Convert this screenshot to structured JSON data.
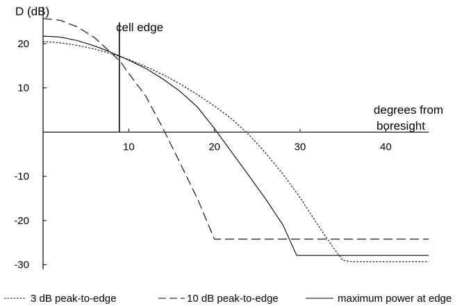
{
  "chart_data": {
    "type": "line",
    "ylabel": "D (dB)",
    "xlabel_line1": "degrees from",
    "xlabel_line2": "boresight",
    "xlim": [
      0,
      45
    ],
    "ylim": [
      -31,
      28
    ],
    "x_ticks": [
      10,
      20,
      30,
      40
    ],
    "y_ticks": [
      20,
      10,
      -10,
      -20,
      -30
    ],
    "grid": false,
    "legend_position": "bottom",
    "annotation": {
      "text": "cell edge",
      "x": 8.9
    },
    "series": [
      {
        "name": "3 dB peak-to-edge",
        "style": "dotted",
        "x": [
          0,
          2,
          4,
          6,
          8,
          10,
          12,
          14,
          16,
          18,
          20,
          22,
          24,
          26,
          28,
          30,
          32,
          34,
          35,
          36,
          45
        ],
        "y": [
          20.5,
          20.2,
          19.6,
          18.8,
          17.7,
          16.4,
          14.8,
          13.0,
          10.9,
          8.5,
          5.9,
          3.0,
          -0.5,
          -4.8,
          -9.5,
          -14.8,
          -20.8,
          -26.5,
          -29.0,
          -29.3,
          -29.3
        ]
      },
      {
        "name": "10 dB peak-to-edge",
        "style": "long-dash",
        "x": [
          0,
          2,
          4,
          6,
          8,
          9,
          10,
          12,
          14,
          16,
          18,
          20,
          45
        ],
        "y": [
          25.7,
          25.3,
          23.8,
          21.4,
          17.8,
          16.0,
          13.3,
          8.1,
          0.8,
          -7.0,
          -15.0,
          -24.2,
          -24.2
        ]
      },
      {
        "name": "maximum power at edge",
        "style": "solid",
        "x": [
          0,
          2,
          4,
          6,
          8,
          10,
          12,
          14,
          16,
          18,
          20,
          22,
          24,
          26,
          28,
          29.6,
          45
        ],
        "y": [
          21.7,
          21.5,
          20.7,
          19.5,
          18.0,
          16.3,
          14.4,
          12.0,
          9.2,
          5.7,
          0.8,
          -4.5,
          -9.8,
          -15.2,
          -21.0,
          -27.9,
          -27.9
        ]
      }
    ]
  }
}
